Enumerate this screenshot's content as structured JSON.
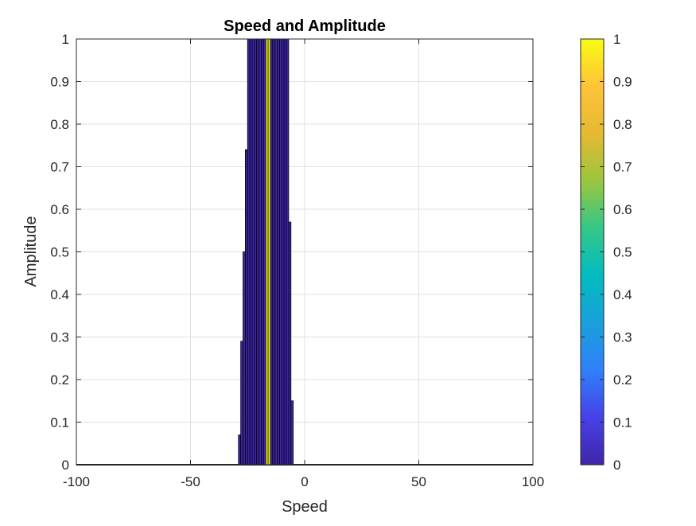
{
  "chart_data": {
    "type": "bar",
    "title": "Speed and Amplitude",
    "xlabel": "Speed",
    "ylabel": "Amplitude",
    "xlim": [
      -100,
      100
    ],
    "ylim": [
      0,
      1
    ],
    "xticks": [
      -100,
      -50,
      0,
      50,
      100
    ],
    "yticks": [
      0,
      0.1,
      0.2,
      0.3,
      0.4,
      0.5,
      0.6,
      0.7,
      0.8,
      0.9,
      1
    ],
    "ytick_labels": [
      "0",
      "0.1",
      "0.2",
      "0.3",
      "0.4",
      "0.5",
      "0.6",
      "0.7",
      "0.8",
      "0.9",
      "1"
    ],
    "grid": true,
    "bar_width": 1,
    "x": [
      -28.5,
      -27.5,
      -26.5,
      -25.5,
      -24.5,
      -23.5,
      -22.5,
      -21.5,
      -20.5,
      -19.5,
      -18.5,
      -17.5,
      -16.5,
      -15.5,
      -14.5,
      -13.5,
      -12.5,
      -11.5,
      -10.5,
      -9.5,
      -8.5,
      -7.5,
      -6.5,
      -5.5
    ],
    "values": [
      0.07,
      0.29,
      0.5,
      0.74,
      1.0,
      1.0,
      1.0,
      1.0,
      1.0,
      1.0,
      1.0,
      1.0,
      1.0,
      1.0,
      1.0,
      1.0,
      1.0,
      1.0,
      1.0,
      1.0,
      1.0,
      1.0,
      0.57,
      0.15
    ],
    "highlight_x": [
      -16.5,
      -15.5
    ],
    "colors": {
      "bar_fill": "#3d26a8",
      "bar_edge": "#000000",
      "highlight_fill": "#f9fb15",
      "grid": "#e0e0e0",
      "axis": "#262626"
    },
    "colorbar": {
      "limits": [
        0,
        1
      ],
      "ticks": [
        0,
        0.1,
        0.2,
        0.3,
        0.4,
        0.5,
        0.6,
        0.7,
        0.8,
        0.9,
        1
      ],
      "tick_labels": [
        "0",
        "0.1",
        "0.2",
        "0.3",
        "0.4",
        "0.5",
        "0.6",
        "0.7",
        "0.8",
        "0.9",
        "1"
      ],
      "colormap": "parula",
      "colormap_stops": [
        "#3e26a8",
        "#4741e8",
        "#2f80fa",
        "#1aa0db",
        "#03bbbf",
        "#33c789",
        "#9bc63d",
        "#e6b932",
        "#fec337",
        "#f9fb15"
      ]
    }
  }
}
